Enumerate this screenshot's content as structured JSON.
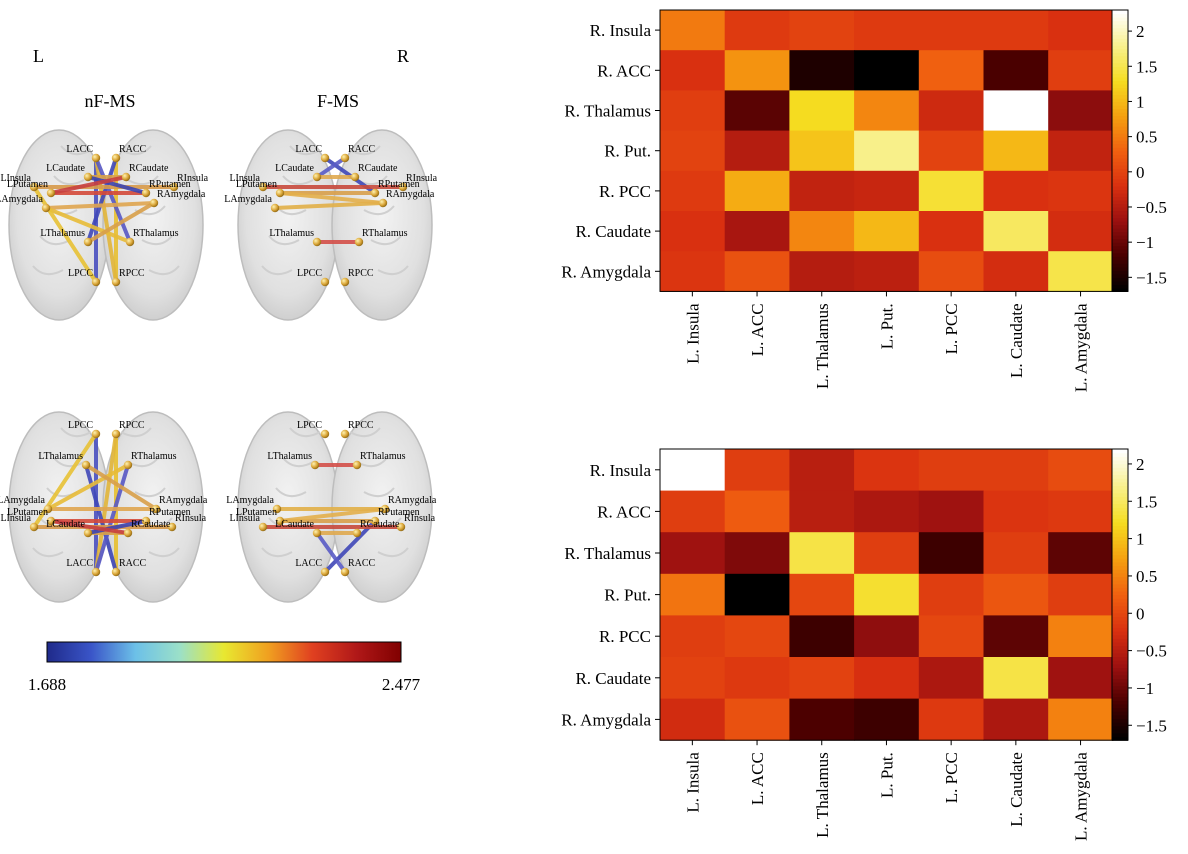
{
  "brain_panel": {
    "side_left": "L",
    "side_right": "R",
    "col_titles": [
      "nF-MS",
      "F-MS"
    ],
    "top_nodes": {
      "nF": [
        {
          "id": "LACC",
          "label": "LACC"
        },
        {
          "id": "RACC",
          "label": "RACC"
        },
        {
          "id": "LCaudate",
          "label": "LCaudate"
        },
        {
          "id": "RCaudate",
          "label": "RCaudate"
        },
        {
          "id": "LInsula",
          "label": "LInsula"
        },
        {
          "id": "RInsula",
          "label": "RInsula"
        },
        {
          "id": "LPutamen",
          "label": "LPutamen"
        },
        {
          "id": "RPutamen",
          "label": "RPutamen"
        },
        {
          "id": "LAmygdala",
          "label": "LAmygdala"
        },
        {
          "id": "RAmygdala",
          "label": "RAmygdala"
        },
        {
          "id": "LThalamus",
          "label": "LThalamus"
        },
        {
          "id": "RThalamus",
          "label": "RThalamus"
        },
        {
          "id": "LPCC",
          "label": "LPCC"
        },
        {
          "id": "RPCC",
          "label": "RPCC"
        }
      ],
      "F": [
        {
          "id": "LACC",
          "label": "LACC"
        },
        {
          "id": "RACC",
          "label": "RACC"
        },
        {
          "id": "LCaudate",
          "label": "LCaudate"
        },
        {
          "id": "RCaudate",
          "label": "RCaudate"
        },
        {
          "id": "LInsula",
          "label": "LInsula"
        },
        {
          "id": "RInsula",
          "label": "RInsula"
        },
        {
          "id": "LPutamen",
          "label": "LPutamen"
        },
        {
          "id": "RPutamen",
          "label": "RPutamen"
        },
        {
          "id": "LAmygdala",
          "label": "LAmygdala"
        },
        {
          "id": "RAmygdala",
          "label": "RAmygdala"
        },
        {
          "id": "LThalamus",
          "label": "LThalamus"
        },
        {
          "id": "RThalamus",
          "label": "RThalamus"
        },
        {
          "id": "LPCC",
          "label": "LPCC"
        },
        {
          "id": "RPCC",
          "label": "RPCC"
        }
      ]
    },
    "bottom_nodes": {
      "nF": [
        {
          "id": "LPCC",
          "label": "LPCC"
        },
        {
          "id": "RPCC",
          "label": "RPCC"
        },
        {
          "id": "LThalamus",
          "label": "LThalamus"
        },
        {
          "id": "RThalamus",
          "label": "RThalamus"
        },
        {
          "id": "LAmygdala",
          "label": "LAmygdala"
        },
        {
          "id": "RAmygdala",
          "label": "RAmygdala"
        },
        {
          "id": "LPutamen",
          "label": "LPutamen"
        },
        {
          "id": "RPutamen",
          "label": "RPutamen"
        },
        {
          "id": "LInsula",
          "label": "LInsula"
        },
        {
          "id": "RInsula",
          "label": "RInsula"
        },
        {
          "id": "LCaudate",
          "label": "LCaudate"
        },
        {
          "id": "RCaudate",
          "label": "RCaudate"
        },
        {
          "id": "LACC",
          "label": "LACC"
        },
        {
          "id": "RACC",
          "label": "RACC"
        }
      ],
      "F": [
        {
          "id": "LPCC",
          "label": "LPCC"
        },
        {
          "id": "RPCC",
          "label": "RPCC"
        },
        {
          "id": "LThalamus",
          "label": "LThalamus"
        },
        {
          "id": "RThalamus",
          "label": "RThalamus"
        },
        {
          "id": "LAmygdala",
          "label": "LAmygdala"
        },
        {
          "id": "RAmygdala",
          "label": "RAmygdala"
        },
        {
          "id": "LPutamen",
          "label": "LPutamen"
        },
        {
          "id": "RPutamen",
          "label": "RPutamen"
        },
        {
          "id": "LInsula",
          "label": "LInsula"
        },
        {
          "id": "RInsula",
          "label": "RInsula"
        },
        {
          "id": "LCaudate",
          "label": "LCaudate"
        },
        {
          "id": "RCaudate",
          "label": "RCaudate"
        },
        {
          "id": "LACC",
          "label": "LACC"
        },
        {
          "id": "RACC",
          "label": "RACC"
        }
      ]
    },
    "edges": {
      "nF": [
        {
          "a": "LACC",
          "b": "LPCC",
          "c": "#4a50c0"
        },
        {
          "a": "RACC",
          "b": "RPCC",
          "c": "#e8c030"
        },
        {
          "a": "LACC",
          "b": "RPCC",
          "c": "#e2b63a"
        },
        {
          "a": "RACC",
          "b": "LThalamus",
          "c": "#4048b8"
        },
        {
          "a": "LACC",
          "b": "RThalamus",
          "c": "#5858c4"
        },
        {
          "a": "LCaudate",
          "b": "RCaudate",
          "c": "#d9a24a"
        },
        {
          "a": "LPutamen",
          "b": "RPutamen",
          "c": "#d44a3a"
        },
        {
          "a": "LInsula",
          "b": "RInsula",
          "c": "#d89a4a"
        },
        {
          "a": "LAmygdala",
          "b": "RAmygdala",
          "c": "#e0a650"
        },
        {
          "a": "LCaudate",
          "b": "RPutamen",
          "c": "#3c44b0"
        },
        {
          "a": "LPutamen",
          "b": "RCaudate",
          "c": "#c84040"
        },
        {
          "a": "LAmygdala",
          "b": "RThalamus",
          "c": "#e8bc38"
        },
        {
          "a": "LThalamus",
          "b": "RAmygdala",
          "c": "#d9a04a"
        },
        {
          "a": "LInsula",
          "b": "LPCC",
          "c": "#e8c236"
        }
      ],
      "F": [
        {
          "a": "LACC",
          "b": "RPutamen",
          "c": "#4048b8"
        },
        {
          "a": "RACC",
          "b": "LCaudate",
          "c": "#5a5cc6"
        },
        {
          "a": "LCaudate",
          "b": "RCaudate",
          "c": "#e0aa50"
        },
        {
          "a": "LPutamen",
          "b": "RPutamen",
          "c": "#d9a04c"
        },
        {
          "a": "LInsula",
          "b": "RInsula",
          "c": "#c84a3c"
        },
        {
          "a": "LAmygdala",
          "b": "RAmygdala",
          "c": "#e2b048"
        },
        {
          "a": "LThalamus",
          "b": "RThalamus",
          "c": "#d4504a"
        },
        {
          "a": "LPutamen",
          "b": "RAmygdala",
          "c": "#e4b04c"
        }
      ]
    },
    "colorbar": {
      "min_label": "1.688",
      "max_label": "2.477",
      "stops": [
        "#1f2a8a",
        "#3a55c8",
        "#6cc0e8",
        "#9be0c8",
        "#e8e830",
        "#f0a020",
        "#e04020",
        "#b01818",
        "#800000"
      ]
    }
  },
  "chart_data": [
    {
      "type": "heatmap",
      "title": "",
      "rows": [
        "R. Insula",
        "R. ACC",
        "R. Thalamus",
        "R. Put.",
        "R. PCC",
        "R. Caudate",
        "R. Amygdala"
      ],
      "cols": [
        "L. Insula",
        "L. ACC",
        "L. Thalamus",
        "L. Put.",
        "L. PCC",
        "L. Caudate",
        "L. Amygdala"
      ],
      "values": [
        [
          0.5,
          -0.1,
          0.0,
          -0.1,
          -0.1,
          -0.1,
          -0.2
        ],
        [
          -0.2,
          0.7,
          -1.5,
          -1.7,
          0.3,
          -1.2,
          -0.05
        ],
        [
          -0.05,
          -1.1,
          1.3,
          0.6,
          -0.3,
          2.3,
          -0.8
        ],
        [
          0.0,
          -0.5,
          1.1,
          1.8,
          0.0,
          1.0,
          -0.4
        ],
        [
          -0.1,
          0.9,
          -0.4,
          -0.35,
          1.4,
          -0.2,
          -0.15
        ],
        [
          -0.2,
          -0.6,
          0.6,
          1.0,
          -0.2,
          1.6,
          -0.25
        ],
        [
          -0.15,
          0.15,
          -0.5,
          -0.45,
          0.1,
          -0.25,
          1.5
        ]
      ],
      "colorbar": {
        "min": -1.7,
        "max": 2.3,
        "ticks": [
          2,
          1.5,
          1,
          0.5,
          0,
          -0.5,
          -1,
          -1.5
        ],
        "tick_labels": [
          "2",
          "1.5",
          "1",
          "0.5",
          "0",
          "−0.5",
          "−1",
          "−1.5"
        ]
      },
      "colormap": [
        "#000000",
        "#4a0000",
        "#9c1010",
        "#d93010",
        "#f06010",
        "#f5a010",
        "#f5dc20",
        "#f8f08a",
        "#ffffff"
      ]
    },
    {
      "type": "heatmap",
      "title": "",
      "rows": [
        "R. Insula",
        "R. ACC",
        "R. Thalamus",
        "R. Put.",
        "R. PCC",
        "R. Caudate",
        "R. Amygdala"
      ],
      "cols": [
        "L. Insula",
        "L. ACC",
        "L. Thalamus",
        "L. Put.",
        "L. PCC",
        "L. Caudate",
        "L. Amygdala"
      ],
      "values": [
        [
          2.2,
          -0.1,
          -0.5,
          -0.2,
          -0.1,
          -0.1,
          0.05
        ],
        [
          -0.1,
          0.2,
          -0.5,
          -0.6,
          -0.7,
          -0.2,
          -0.15
        ],
        [
          -0.7,
          -0.9,
          1.4,
          -0.1,
          -1.3,
          -0.1,
          -1.1
        ],
        [
          0.4,
          -1.7,
          0.0,
          1.3,
          -0.1,
          0.15,
          -0.1
        ],
        [
          -0.1,
          0.0,
          -1.3,
          -0.8,
          0.0,
          -1.1,
          0.5
        ],
        [
          -0.05,
          -0.15,
          -0.05,
          -0.25,
          -0.6,
          1.4,
          -0.7
        ],
        [
          -0.3,
          0.1,
          -1.2,
          -1.3,
          -0.15,
          -0.6,
          0.5
        ]
      ],
      "colorbar": {
        "min": -1.7,
        "max": 2.2,
        "ticks": [
          2,
          1.5,
          1,
          0.5,
          0,
          -0.5,
          -1,
          -1.5
        ],
        "tick_labels": [
          "2",
          "1.5",
          "1",
          "0.5",
          "0",
          "−0.5",
          "−1",
          "−1.5"
        ]
      },
      "colormap": [
        "#000000",
        "#4a0000",
        "#9c1010",
        "#d93010",
        "#f06010",
        "#f5a010",
        "#f5dc20",
        "#f8f08a",
        "#ffffff"
      ]
    }
  ]
}
